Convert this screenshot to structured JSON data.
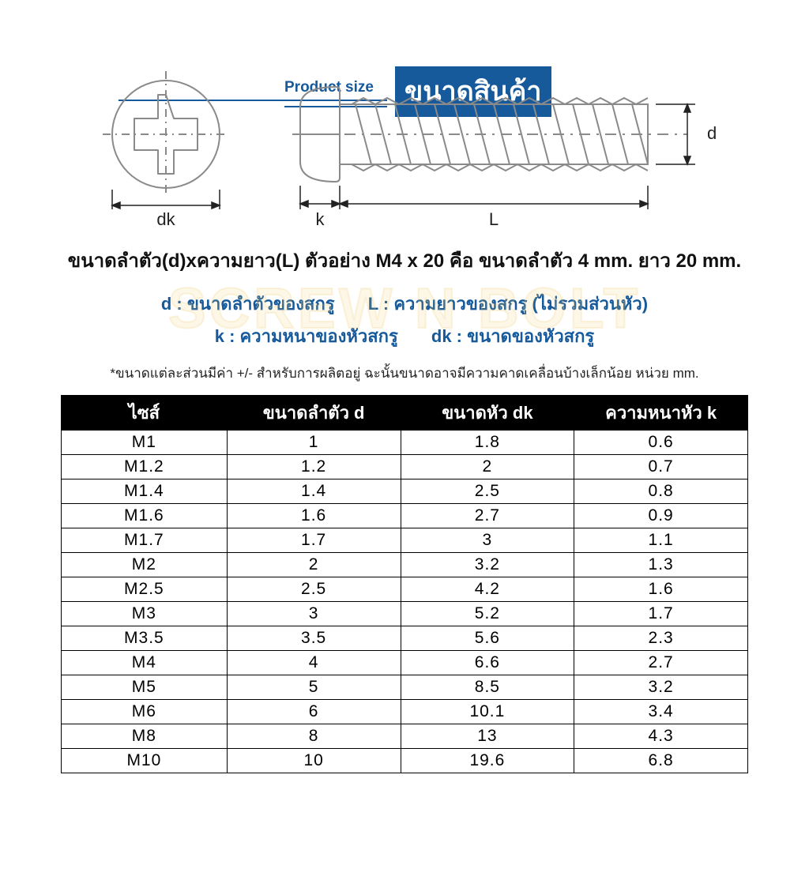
{
  "header": {
    "en": "Product size",
    "th": "ขนาดสินค้า"
  },
  "watermark": "SCREW N BOLT",
  "diagram": {
    "head_label_dk": "dk",
    "side_label_k": "k",
    "side_label_L": "L",
    "side_label_d": "d",
    "stroke_color": "#8a8a8a",
    "dim_color": "#222222"
  },
  "example": "ขนาดลำตัว(d)xความยาว(L) ตัวอย่าง M4 x 20 คือ ขนาดลำตัว 4 mm. ยาว 20 mm.",
  "legend": {
    "d": "d : ขนาดลำตัวของสกรู",
    "L": "L : ความยาวของสกรู (ไม่รวมส่วนหัว)",
    "k": "k : ความหนาของหัวสกรู",
    "dk": "dk : ขนาดของหัวสกรู"
  },
  "footnote": "*ขนาดแต่ละส่วนมีค่า +/- สำหรับการผลิตอยู่ ฉะนั้นขนาดอาจมีความคาดเคลื่อนบ้างเล็กน้อย หน่วย mm.",
  "table": {
    "columns": [
      "ไซส์",
      "ขนาดลำตัว d",
      "ขนาดหัว dk",
      "ความหนาหัว k"
    ],
    "rows": [
      [
        "M1",
        "1",
        "1.8",
        "0.6"
      ],
      [
        "M1.2",
        "1.2",
        "2",
        "0.7"
      ],
      [
        "M1.4",
        "1.4",
        "2.5",
        "0.8"
      ],
      [
        "M1.6",
        "1.6",
        "2.7",
        "0.9"
      ],
      [
        "M1.7",
        "1.7",
        "3",
        "1.1"
      ],
      [
        "M2",
        "2",
        "3.2",
        "1.3"
      ],
      [
        "M2.5",
        "2.5",
        "4.2",
        "1.6"
      ],
      [
        "M3",
        "3",
        "5.2",
        "1.7"
      ],
      [
        "M3.5",
        "3.5",
        "5.6",
        "2.3"
      ],
      [
        "M4",
        "4",
        "6.6",
        "2.7"
      ],
      [
        "M5",
        "5",
        "8.5",
        "3.2"
      ],
      [
        "M6",
        "6",
        "10.1",
        "3.4"
      ],
      [
        "M8",
        "8",
        "13",
        "4.3"
      ],
      [
        "M10",
        "10",
        "19.6",
        "6.8"
      ]
    ]
  },
  "colors": {
    "brand": "#165a9c",
    "table_header_bg": "#000000",
    "table_header_fg": "#ffffff",
    "text": "#111111"
  }
}
